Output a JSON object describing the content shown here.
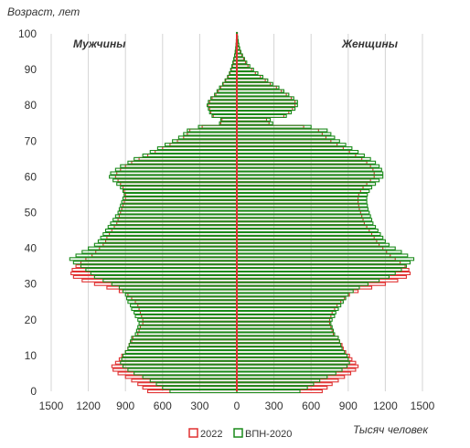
{
  "chart_data": {
    "type": "bar",
    "orientation": "population-pyramid",
    "ylabel": "Возраст, лет",
    "xlabel": "Тысяч человек",
    "left_group_label": "Мужчины",
    "right_group_label": "Женщины",
    "y_ticks": [
      0,
      10,
      20,
      30,
      40,
      50,
      60,
      70,
      80,
      90,
      100
    ],
    "x_ticks": [
      -1500,
      -1200,
      -900,
      -600,
      -300,
      0,
      300,
      600,
      900,
      1200,
      1500
    ],
    "x_tick_labels": [
      "1500",
      "1200",
      "900",
      "600",
      "300",
      "0",
      "300",
      "600",
      "900",
      "1200",
      "1500"
    ],
    "xlim": [
      -1500,
      1500
    ],
    "ylim": [
      0,
      100
    ],
    "grid": "vertical",
    "legend_position": "bottom",
    "ages": [
      0,
      1,
      2,
      3,
      4,
      5,
      6,
      7,
      8,
      9,
      10,
      11,
      12,
      13,
      14,
      15,
      16,
      17,
      18,
      19,
      20,
      21,
      22,
      23,
      24,
      25,
      26,
      27,
      28,
      29,
      30,
      31,
      32,
      33,
      34,
      35,
      36,
      37,
      38,
      39,
      40,
      41,
      42,
      43,
      44,
      45,
      46,
      47,
      48,
      49,
      50,
      51,
      52,
      53,
      54,
      55,
      56,
      57,
      58,
      59,
      60,
      61,
      62,
      63,
      64,
      65,
      66,
      67,
      68,
      69,
      70,
      71,
      72,
      73,
      74,
      75,
      76,
      77,
      78,
      79,
      80,
      81,
      82,
      83,
      84,
      85,
      86,
      87,
      88,
      89,
      90,
      91,
      92,
      93,
      94,
      95,
      96,
      97,
      98,
      99,
      100
    ],
    "series": [
      {
        "name": "2022",
        "color": "#e03030",
        "male": [
          720,
          760,
          800,
          850,
          900,
          960,
          1000,
          1010,
          980,
          950,
          930,
          900,
          880,
          870,
          850,
          840,
          800,
          790,
          780,
          760,
          760,
          770,
          780,
          790,
          800,
          820,
          850,
          880,
          950,
          1050,
          1150,
          1250,
          1320,
          1340,
          1330,
          1300,
          1260,
          1220,
          1170,
          1140,
          1110,
          1080,
          1060,
          1050,
          1030,
          1010,
          990,
          970,
          960,
          950,
          940,
          930,
          920,
          910,
          900,
          900,
          910,
          920,
          940,
          960,
          980,
          970,
          940,
          900,
          850,
          790,
          720,
          660,
          600,
          540,
          480,
          430,
          400,
          380,
          280,
          130,
          120,
          190,
          210,
          220,
          230,
          220,
          200,
          170,
          150,
          130,
          110,
          90,
          70,
          55,
          45,
          35,
          28,
          22,
          16,
          12,
          8,
          6,
          4,
          3,
          2,
          1
        ],
        "female": [
          690,
          730,
          770,
          820,
          870,
          920,
          960,
          980,
          960,
          930,
          910,
          880,
          860,
          850,
          830,
          820,
          780,
          770,
          760,
          750,
          750,
          760,
          770,
          790,
          810,
          840,
          870,
          910,
          980,
          1090,
          1200,
          1300,
          1370,
          1400,
          1390,
          1360,
          1320,
          1280,
          1240,
          1210,
          1180,
          1150,
          1130,
          1110,
          1090,
          1070,
          1050,
          1030,
          1020,
          1010,
          1000,
          990,
          985,
          980,
          980,
          985,
          1000,
          1020,
          1050,
          1080,
          1110,
          1110,
          1100,
          1080,
          1050,
          1010,
          960,
          910,
          860,
          810,
          760,
          720,
          690,
          660,
          540,
          260,
          240,
          380,
          420,
          450,
          470,
          470,
          440,
          400,
          360,
          320,
          270,
          230,
          190,
          150,
          120,
          90,
          70,
          55,
          40,
          28,
          20,
          14,
          9,
          6,
          4,
          2
        ]
      },
      {
        "name": "ВПН-2020",
        "color": "#1a8a1a",
        "male": [
          540,
          600,
          650,
          700,
          760,
          830,
          880,
          920,
          940,
          930,
          920,
          900,
          880,
          870,
          860,
          850,
          820,
          810,
          800,
          790,
          800,
          820,
          830,
          850,
          860,
          880,
          890,
          900,
          920,
          950,
          1010,
          1080,
          1150,
          1180,
          1220,
          1260,
          1320,
          1350,
          1300,
          1250,
          1200,
          1150,
          1120,
          1100,
          1080,
          1060,
          1040,
          1020,
          1000,
          980,
          960,
          950,
          940,
          930,
          920,
          910,
          920,
          940,
          970,
          1000,
          1030,
          1020,
          980,
          940,
          880,
          830,
          760,
          700,
          640,
          580,
          520,
          470,
          430,
          400,
          310,
          140,
          130,
          200,
          220,
          230,
          240,
          230,
          210,
          180,
          160,
          140,
          115,
          95,
          75,
          60,
          50,
          40,
          32,
          25,
          18,
          13,
          9,
          6,
          4,
          3,
          2
        ],
        "female": [
          510,
          570,
          620,
          670,
          730,
          800,
          850,
          890,
          910,
          900,
          890,
          870,
          850,
          840,
          830,
          820,
          790,
          780,
          770,
          760,
          770,
          790,
          800,
          820,
          840,
          860,
          880,
          900,
          940,
          990,
          1060,
          1150,
          1230,
          1280,
          1330,
          1370,
          1400,
          1430,
          1380,
          1330,
          1280,
          1230,
          1200,
          1180,
          1160,
          1140,
          1120,
          1100,
          1090,
          1080,
          1070,
          1060,
          1055,
          1050,
          1050,
          1055,
          1070,
          1090,
          1120,
          1150,
          1180,
          1180,
          1170,
          1150,
          1120,
          1080,
          1030,
          980,
          930,
          880,
          830,
          790,
          760,
          730,
          600,
          290,
          270,
          400,
          440,
          470,
          490,
          490,
          460,
          420,
          380,
          340,
          290,
          250,
          210,
          170,
          135,
          105,
          80,
          62,
          46,
          33,
          23,
          16,
          11,
          7,
          4
        ]
      }
    ]
  }
}
